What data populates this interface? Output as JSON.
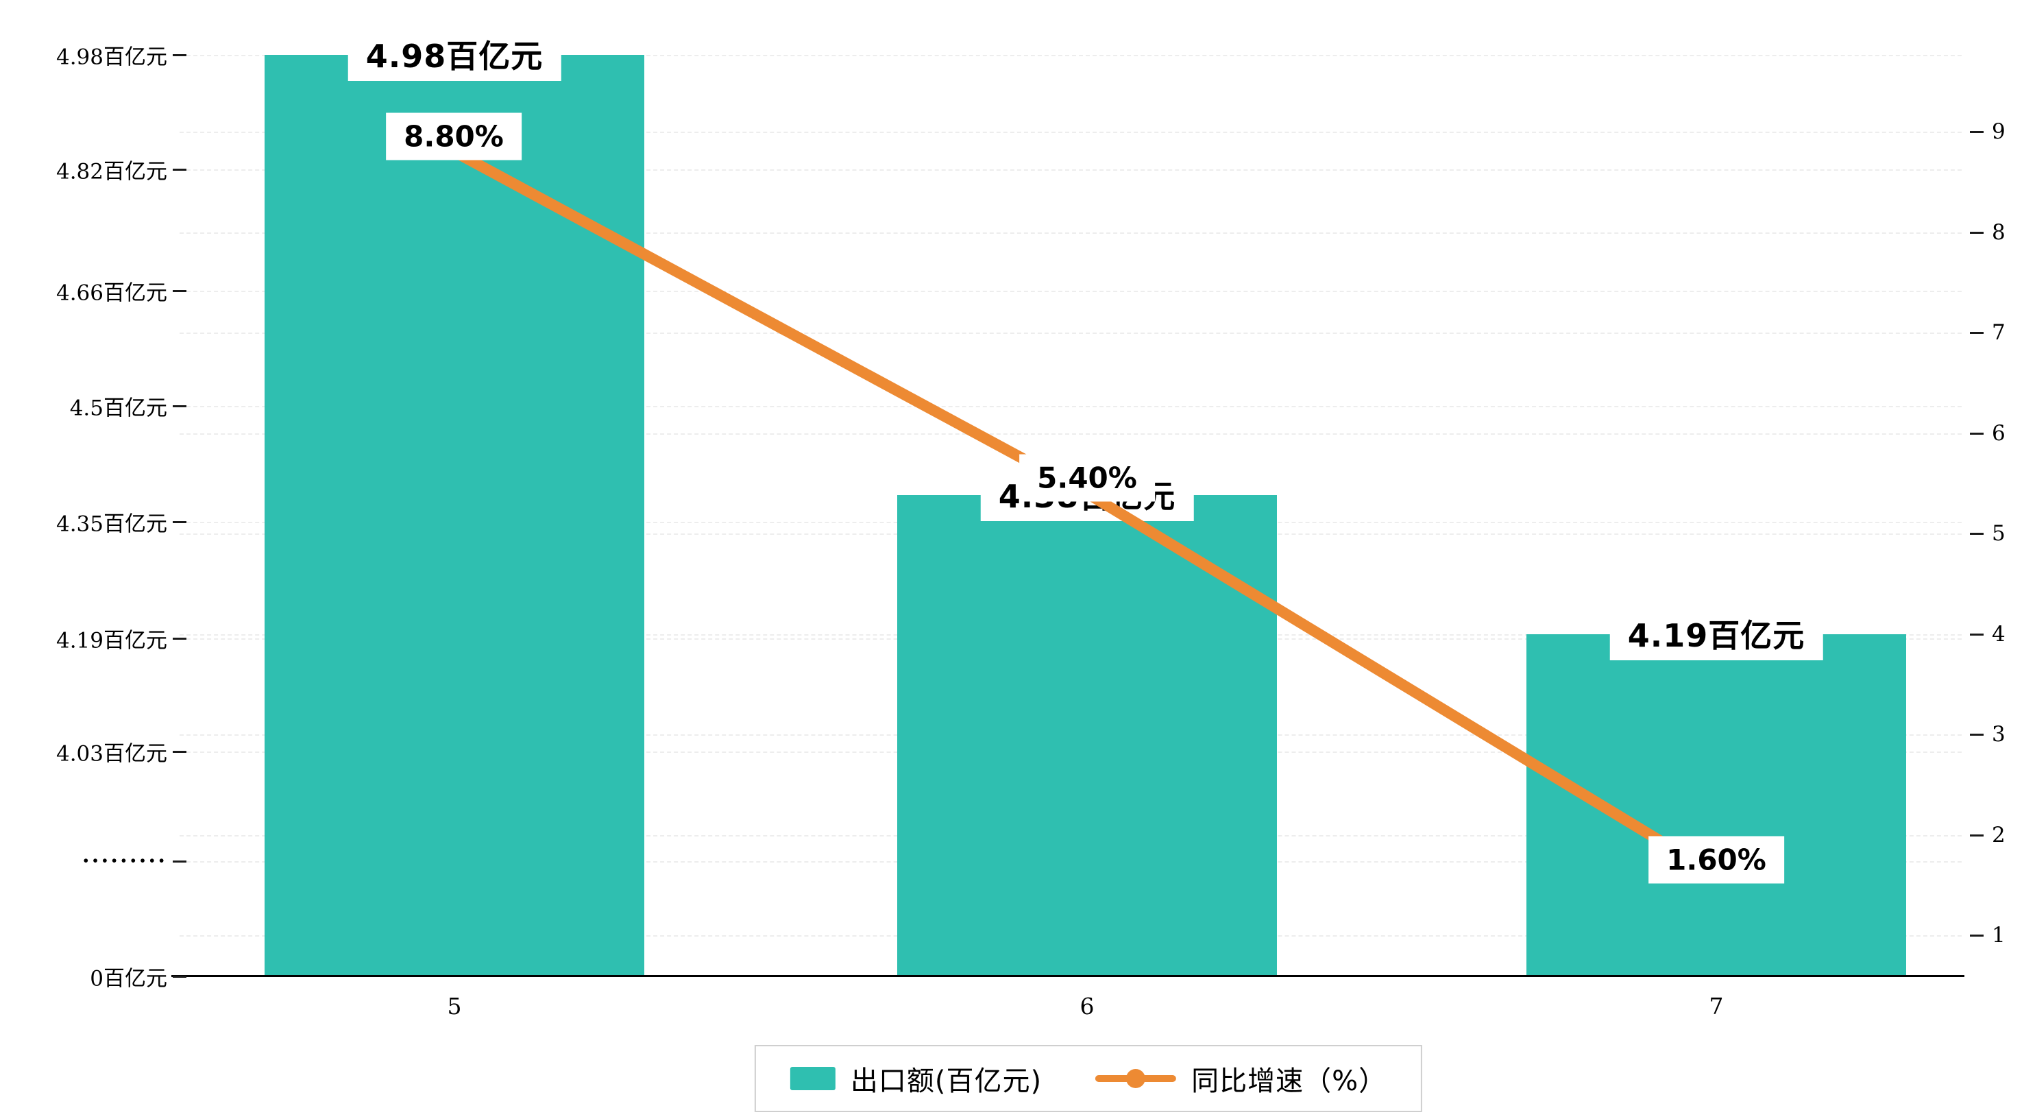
{
  "chart_data": {
    "type": "bar",
    "categories": [
      "5",
      "6",
      "7"
    ],
    "series": [
      {
        "name": "出口额(百亿元)",
        "kind": "bar",
        "values": [
          4.98,
          4.38,
          4.19
        ],
        "labels": [
          "4.98百亿元",
          "4.38百亿元",
          "4.19百亿元"
        ],
        "color": "#2fbfb0"
      },
      {
        "name": "同比增速（%）",
        "kind": "line",
        "values": [
          8.8,
          5.4,
          1.6
        ],
        "labels": [
          "8.80%",
          "5.40%",
          "1.60%"
        ],
        "color": "#ed8a33"
      }
    ],
    "left_axis_ticks": [
      "4.98百亿元",
      "4.82百亿元",
      "4.66百亿元",
      "4.5百亿元",
      "4.35百亿元",
      "4.19百亿元",
      "4.03百亿元",
      "·········",
      "0百亿元"
    ],
    "right_axis_ticks": [
      "9",
      "8",
      "7",
      "6",
      "5",
      "4",
      "3",
      "2",
      "1"
    ],
    "right_axis_range": [
      1,
      9
    ],
    "left_axis_break": true,
    "grid": "dashed",
    "legend_position": "bottom",
    "title": ""
  },
  "colors": {
    "bar": "#2fbfb0",
    "line": "#ed8a33",
    "grid": "#ececec",
    "axis": "#000000",
    "label_bg": "#ffffff"
  }
}
